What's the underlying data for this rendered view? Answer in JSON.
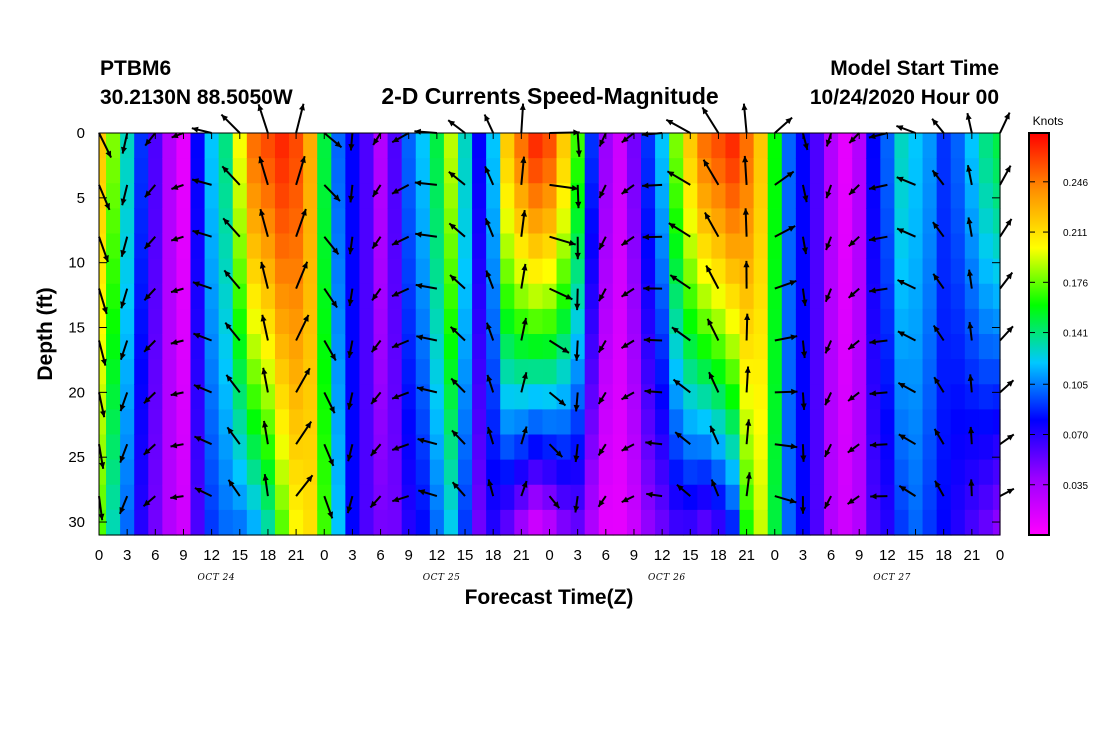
{
  "header": {
    "station": "PTBM6",
    "coords": "30.2130N 88.5050W",
    "title": "2-D Currents Speed-Magnitude",
    "model_label": "Model Start Time",
    "model_time": "10/24/2020 Hour 00"
  },
  "chart_data": {
    "type": "heatmap",
    "title": "2-D Currents Speed-Magnitude",
    "xlabel": "Forecast Time(Z)",
    "ylabel": "Depth (ft)",
    "x_range_hours": [
      0,
      96
    ],
    "y_range_ft": [
      0,
      31
    ],
    "x_tick_labels": [
      "0",
      "3",
      "6",
      "9",
      "12",
      "15",
      "18",
      "21",
      "0",
      "3",
      "6",
      "9",
      "12",
      "15",
      "18",
      "21",
      "0",
      "3",
      "6",
      "9",
      "12",
      "15",
      "18",
      "21",
      "0",
      "3",
      "6",
      "9",
      "12",
      "15",
      "18",
      "21",
      "0"
    ],
    "y_tick_labels": [
      "0",
      "5",
      "10",
      "15",
      "20",
      "25",
      "30"
    ],
    "y_tick_values": [
      0,
      5,
      10,
      15,
      20,
      25,
      30
    ],
    "date_labels": [
      "OCT 24",
      "OCT 25",
      "OCT 26",
      "OCT 27"
    ],
    "colorbar": {
      "unit": "Knots",
      "tick_labels": [
        "0.246",
        "0.211",
        "0.176",
        "0.141",
        "0.105",
        "0.070",
        "0.035"
      ],
      "tick_values": [
        0.246,
        0.211,
        0.176,
        0.141,
        0.105,
        0.07,
        0.035
      ],
      "min": 0.0,
      "max": 0.28,
      "colors": [
        "#ff00ff",
        "#9a00ff",
        "#0000ff",
        "#00c8ff",
        "#00ff00",
        "#ffff00",
        "#ff9000",
        "#ff0000"
      ]
    },
    "speed_profile_hours": [
      0,
      1.5,
      3,
      4.5,
      6,
      7.5,
      9,
      10.5,
      12,
      13.5,
      15,
      16.5,
      18,
      19.5,
      21,
      22.5,
      24,
      25.5,
      27,
      28.5,
      30,
      31.5,
      33,
      34.5,
      36,
      37.5,
      39,
      40.5,
      42,
      43.5,
      45,
      46.5,
      48,
      49.5,
      51,
      52.5,
      54,
      55.5,
      57,
      58.5,
      60,
      61.5,
      63,
      64.5,
      66,
      67.5,
      69,
      70.5,
      72,
      73.5,
      75,
      76.5,
      78,
      79.5,
      81,
      82.5,
      84,
      85.5,
      87,
      88.5,
      90,
      91.5,
      93,
      94.5,
      96
    ],
    "surface_speed_knots": [
      0.22,
      0.18,
      0.13,
      0.09,
      0.06,
      0.03,
      0.01,
      0.08,
      0.12,
      0.14,
      0.2,
      0.25,
      0.26,
      0.27,
      0.26,
      0.23,
      0.15,
      0.1,
      0.08,
      0.06,
      0.03,
      0.06,
      0.1,
      0.12,
      0.15,
      0.19,
      0.13,
      0.08,
      0.12,
      0.22,
      0.25,
      0.27,
      0.26,
      0.22,
      0.17,
      0.09,
      0.04,
      0.02,
      0.05,
      0.09,
      0.12,
      0.18,
      0.22,
      0.25,
      0.26,
      0.27,
      0.25,
      0.22,
      0.16,
      0.1,
      0.08,
      0.06,
      0.03,
      0.01,
      0.03,
      0.08,
      0.1,
      0.13,
      0.12,
      0.11,
      0.09,
      0.1,
      0.12,
      0.14,
      0.15
    ],
    "bottom_speed_knots": [
      0.17,
      0.13,
      0.1,
      0.07,
      0.05,
      0.03,
      0.02,
      0.06,
      0.09,
      0.1,
      0.1,
      0.11,
      0.13,
      0.17,
      0.2,
      0.21,
      0.17,
      0.12,
      0.08,
      0.06,
      0.05,
      0.05,
      0.07,
      0.08,
      0.1,
      0.12,
      0.09,
      0.05,
      0.07,
      0.05,
      0.03,
      0.01,
      0.02,
      0.04,
      0.05,
      0.03,
      0.01,
      0.01,
      0.02,
      0.04,
      0.05,
      0.06,
      0.06,
      0.05,
      0.06,
      0.08,
      0.16,
      0.19,
      0.15,
      0.1,
      0.08,
      0.06,
      0.03,
      0.02,
      0.03,
      0.06,
      0.07,
      0.09,
      0.1,
      0.09,
      0.08,
      0.07,
      0.06,
      0.05,
      0.04
    ],
    "vector_rows_depth_ft": [
      0,
      4,
      8,
      12,
      16,
      20,
      24,
      28
    ],
    "vector_every_hours": 3
  }
}
